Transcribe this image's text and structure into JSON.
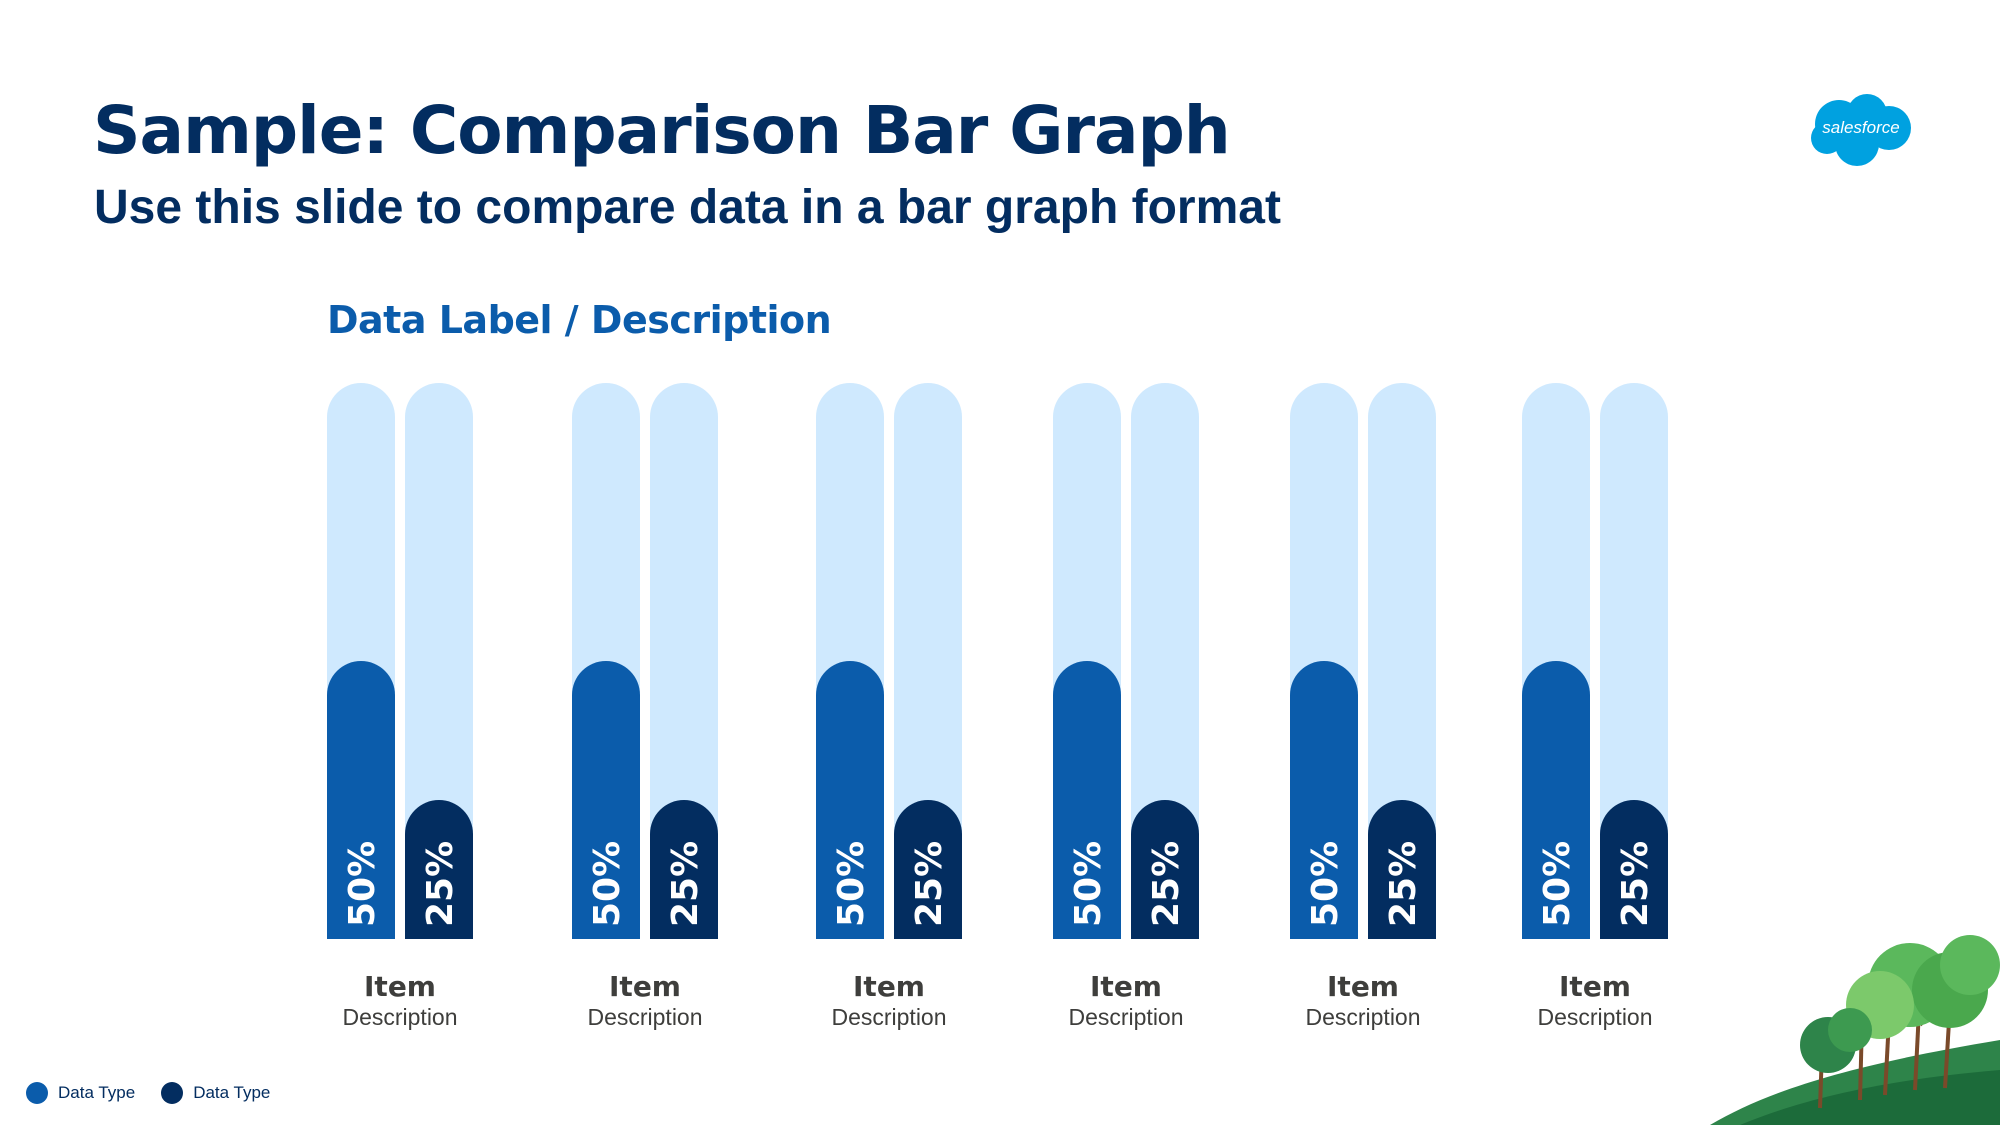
{
  "header": {
    "title": "Sample: Comparison Bar Graph",
    "subtitle": "Use this slide to compare data in a bar graph format"
  },
  "brand": {
    "logo_text": "salesforce",
    "logo_color": "#00a1e0"
  },
  "colors": {
    "track": "#cfe9fe",
    "series1": "#0b5cab",
    "series2": "#032d60",
    "title": "#032d60",
    "label": "#0b5cab",
    "item_text": "#3e3e3c"
  },
  "chart_data": {
    "type": "bar",
    "title": "Data Label / Description",
    "orientation": "vertical",
    "ylim": [
      0,
      100
    ],
    "grid": false,
    "legend_position": "bottom-left",
    "categories": [
      {
        "label": "Item",
        "description": "Description"
      },
      {
        "label": "Item",
        "description": "Description"
      },
      {
        "label": "Item",
        "description": "Description"
      },
      {
        "label": "Item",
        "description": "Description"
      },
      {
        "label": "Item",
        "description": "Description"
      },
      {
        "label": "Item",
        "description": "Description"
      }
    ],
    "series": [
      {
        "name": "Data Type",
        "color": "#0b5cab",
        "values": [
          50,
          50,
          50,
          50,
          50,
          50
        ],
        "labels": [
          "50%",
          "50%",
          "50%",
          "50%",
          "50%",
          "50%"
        ]
      },
      {
        "name": "Data Type",
        "color": "#032d60",
        "values": [
          25,
          25,
          25,
          25,
          25,
          25
        ],
        "labels": [
          "25%",
          "25%",
          "25%",
          "25%",
          "25%",
          "25%"
        ]
      }
    ]
  }
}
